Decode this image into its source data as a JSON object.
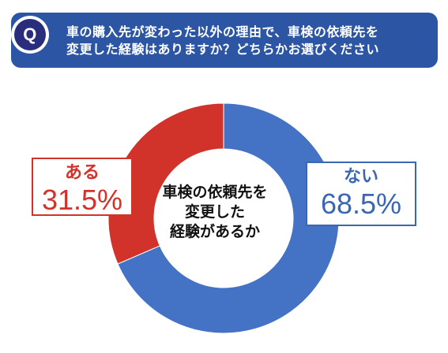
{
  "question": {
    "badge": "Q",
    "line1": "車の購入先が変わった以外の理由で、車検の依頼先を",
    "line2": "変更した経験はありますか？どちらかお選びください"
  },
  "center_label": {
    "line1": "車検の依頼先を",
    "line2": "変更した",
    "line3": "経験があるか"
  },
  "colors": {
    "banner": "#2c55a4",
    "badge": "#2a2d7c",
    "aru": "#d1322a",
    "nai": "#4472c4"
  },
  "chart_data": {
    "type": "pie",
    "style": "donut",
    "categories": [
      "ある",
      "ない"
    ],
    "values": [
      31.5,
      68.5
    ],
    "value_labels": [
      "31.5%",
      "68.5%"
    ],
    "colors": [
      "#d1322a",
      "#4472c4"
    ],
    "start": "12 o'clock",
    "direction": "counter-clockwise for ある, clockwise for ない"
  }
}
